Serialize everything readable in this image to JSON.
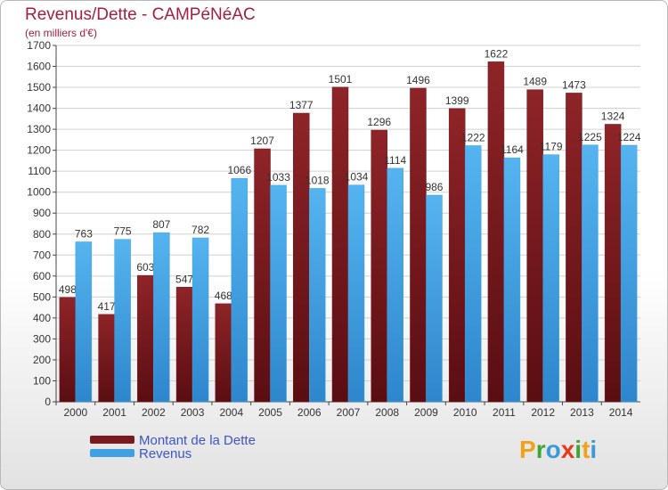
{
  "title": "Revenus/Dette - CAMPéNéAC",
  "subtitle": "(en milliers d'€)",
  "logo": {
    "text": "Proxiti",
    "letters": [
      {
        "ch": "P",
        "color": "#f0a21e"
      },
      {
        "ch": "r",
        "color": "#3fa535"
      },
      {
        "ch": "o",
        "color": "#3c9ad8"
      },
      {
        "ch": "x",
        "color": "#e83a1a"
      },
      {
        "ch": "i",
        "color": "#3fa535"
      },
      {
        "ch": "t",
        "color": "#f0a21e"
      },
      {
        "ch": "i",
        "color": "#3c9ad8"
      }
    ]
  },
  "legend": [
    {
      "label": "Montant de la Dette",
      "color": "#7a1a1e"
    },
    {
      "label": "Revenus",
      "color": "#3fa0e4"
    }
  ],
  "colors": {
    "dette": "#7a1a1e",
    "revenus": "#3fa0e4",
    "grid": "#d0d0d0",
    "label": "#333333"
  },
  "chart_data": {
    "type": "bar",
    "title": "Revenus/Dette - CAMPéNéAC",
    "subtitle": "(en milliers d'€)",
    "categories": [
      "2000",
      "2001",
      "2002",
      "2003",
      "2004",
      "2005",
      "2006",
      "2007",
      "2008",
      "2009",
      "2010",
      "2011",
      "2012",
      "2013",
      "2014"
    ],
    "series": [
      {
        "name": "Montant de la Dette",
        "values": [
          498,
          417,
          603,
          547,
          468,
          1207,
          1377,
          1501,
          1296,
          1496,
          1399,
          1622,
          1489,
          1473,
          1324
        ]
      },
      {
        "name": "Revenus",
        "values": [
          763,
          775,
          807,
          782,
          1066,
          1033,
          1018,
          1034,
          1114,
          986,
          1222,
          1164,
          1179,
          1225,
          1224
        ]
      }
    ],
    "ylim": [
      0,
      1700
    ],
    "yticks": [
      0,
      100,
      200,
      300,
      400,
      500,
      600,
      700,
      800,
      900,
      1000,
      1100,
      1200,
      1300,
      1400,
      1500,
      1600,
      1700
    ],
    "grid": true,
    "legend_position": "bottom-left"
  }
}
